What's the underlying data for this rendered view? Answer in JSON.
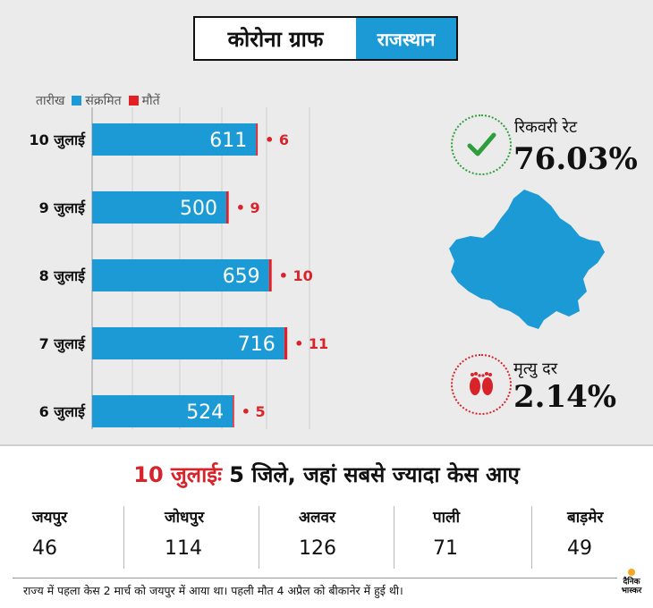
{
  "title": {
    "main": "कोरोना ग्राफ",
    "tag": "राजस्थान"
  },
  "legend": {
    "date_label": "तारीख",
    "infected_label": "संक्रमित",
    "deaths_label": "मौतें"
  },
  "colors": {
    "infected": "#1c9ad6",
    "deaths": "#e31e24",
    "accent_red": "#d8232a",
    "green": "#2e9e3c"
  },
  "chart_data": {
    "type": "bar",
    "orientation": "horizontal",
    "stacked": true,
    "categories": [
      "10 जुलाई",
      "9 जुलाई",
      "8 जुलाई",
      "7 जुलाई",
      "6 जुलाई"
    ],
    "series": [
      {
        "name": "संक्रमित",
        "values": [
          611,
          500,
          659,
          716,
          524
        ]
      },
      {
        "name": "मौतें",
        "values": [
          6,
          9,
          10,
          11,
          5
        ]
      }
    ],
    "death_labels": [
      "• 6",
      "• 9",
      "• 10",
      "• 11",
      "• 5"
    ],
    "grid": true
  },
  "recovery": {
    "label": "रिकवरी रेट",
    "value": "76.03%",
    "icon": "check-icon"
  },
  "mortality": {
    "label": "मृत्यु दर",
    "value": "2.14%",
    "icon": "footprints-icon"
  },
  "headline": {
    "date": "10 जुलाईः",
    "text": " 5 जिले, जहां सबसे ज्यादा केस आए"
  },
  "districts": [
    {
      "name": "जयपुर",
      "cases": "46"
    },
    {
      "name": "जोधपुर",
      "cases": "114"
    },
    {
      "name": "अलवर",
      "cases": "126"
    },
    {
      "name": "पाली",
      "cases": "71"
    },
    {
      "name": "बाड़मेर",
      "cases": "49"
    }
  ],
  "footer": "राज्य में पहला केस 2 मार्च को जयपुर में आया था। पहली मौत 4 अप्रैल को बीकानेर में हुई थी।",
  "logo": {
    "line1": "दैनिक",
    "line2": "भास्कर"
  }
}
